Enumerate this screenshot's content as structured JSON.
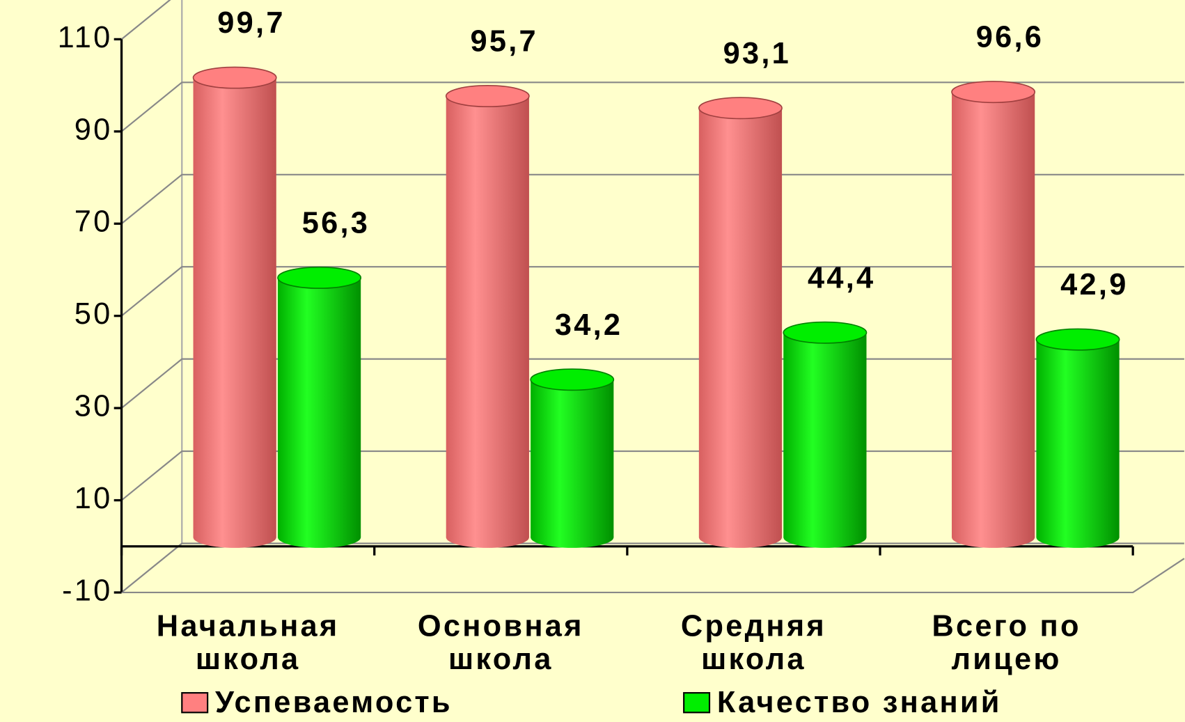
{
  "chart_data": {
    "type": "bar3d",
    "categories": [
      [
        "Начальная",
        "школа"
      ],
      [
        "Основная",
        "школа"
      ],
      [
        "Средняя",
        "школа"
      ],
      [
        "Всего по",
        "лицею"
      ]
    ],
    "series": [
      {
        "name": "Успеваемость",
        "color": "#ff8080",
        "values": [
          99.7,
          95.7,
          93.1,
          96.6
        ],
        "value_labels": [
          "99,7",
          "95,7",
          "93,1",
          "96,6"
        ]
      },
      {
        "name": "Качество знаний",
        "color": "#00ee00",
        "values": [
          56.3,
          34.2,
          44.4,
          42.9
        ],
        "value_labels": [
          "56,3",
          "34,2",
          "44,4",
          "42,9"
        ]
      }
    ],
    "ylim": [
      -10,
      110
    ],
    "yticks": [
      -10,
      10,
      30,
      50,
      70,
      90,
      110
    ],
    "grid": true,
    "legend": "bottom"
  }
}
